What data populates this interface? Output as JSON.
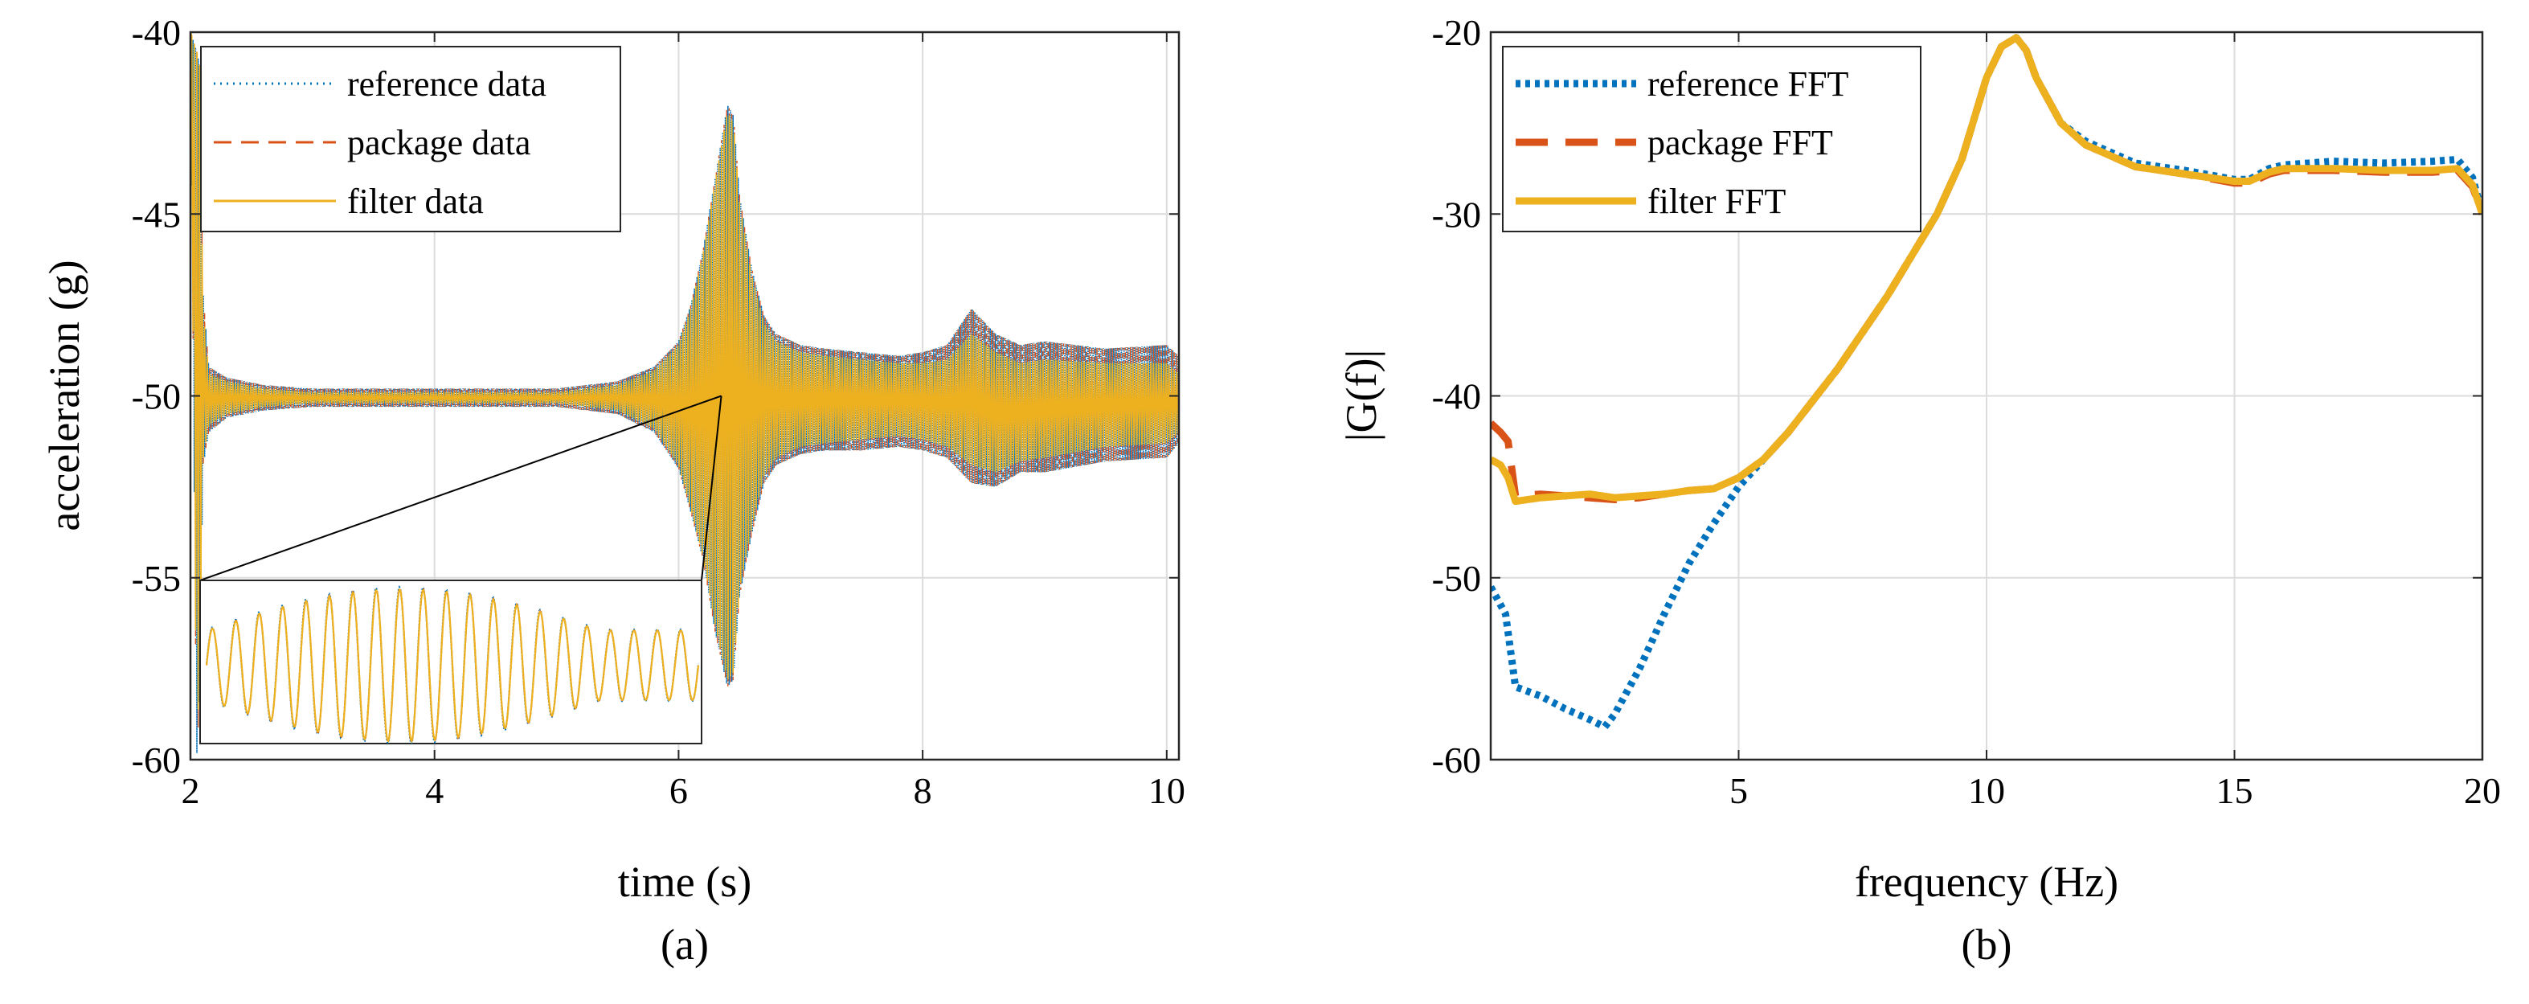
{
  "colors": {
    "reference": "#0072BD",
    "package": "#D95319",
    "filter": "#EDB120",
    "grid": "#DCDCDC",
    "axis": "#262626"
  },
  "chart_data": [
    {
      "panel_label": "(a)",
      "type": "line",
      "xlabel": "time (s)",
      "ylabel": "acceleration (g)",
      "xlim": [
        2,
        10.1
      ],
      "ylim": [
        -60,
        -40
      ],
      "xticks": [
        2,
        4,
        6,
        8,
        10
      ],
      "yticks": [
        -60,
        -55,
        -50,
        -45,
        -40
      ],
      "xtick_labels": [
        "2",
        "4",
        "6",
        "8",
        "10"
      ],
      "ytick_labels": [
        "-60",
        "-55",
        "-50",
        "-45",
        "-40"
      ],
      "grid": true,
      "legend_position": "top-left",
      "series": [
        {
          "name": "reference data",
          "style": "dotted",
          "color_key": "reference"
        },
        {
          "name": "package data",
          "style": "dashed",
          "color_key": "package"
        },
        {
          "name": "filter data",
          "style": "solid",
          "color_key": "filter"
        }
      ],
      "envelope": {
        "x": [
          2.0,
          2.05,
          2.08,
          2.1,
          2.15,
          2.3,
          2.6,
          3.0,
          4.0,
          5.0,
          5.5,
          5.8,
          6.0,
          6.1,
          6.2,
          6.3,
          6.4,
          6.45,
          6.5,
          6.6,
          6.7,
          6.8,
          7.0,
          7.2,
          7.5,
          7.8,
          8.0,
          8.2,
          8.4,
          8.6,
          8.8,
          9.0,
          9.5,
          10.0,
          10.1
        ],
        "reference_upper": [
          -40,
          -40.5,
          -41,
          -47,
          -49.2,
          -49.5,
          -49.7,
          -49.8,
          -49.8,
          -49.8,
          -49.6,
          -49.2,
          -48.5,
          -47.5,
          -46,
          -44,
          -42,
          -42.3,
          -44.5,
          -46.5,
          -47.8,
          -48.3,
          -48.6,
          -48.7,
          -48.8,
          -48.9,
          -48.8,
          -48.6,
          -47.6,
          -48.3,
          -48.6,
          -48.5,
          -48.7,
          -48.6,
          -48.9
        ],
        "reference_lower": [
          -40,
          -60,
          -58,
          -52,
          -51,
          -50.6,
          -50.4,
          -50.3,
          -50.3,
          -50.3,
          -50.5,
          -51,
          -52,
          -53.2,
          -54.5,
          -56.5,
          -58,
          -57.8,
          -55.5,
          -53.8,
          -52.4,
          -51.9,
          -51.6,
          -51.5,
          -51.5,
          -51.4,
          -51.5,
          -51.7,
          -52.4,
          -52.5,
          -52.1,
          -52.1,
          -51.8,
          -51.7,
          -51.3
        ],
        "filter_upper": [
          -40,
          -40.5,
          -41,
          -47.5,
          -49.4,
          -49.6,
          -49.8,
          -49.9,
          -49.9,
          -49.9,
          -49.7,
          -49.3,
          -48.6,
          -47.6,
          -46.1,
          -44.1,
          -42.2,
          -42.5,
          -44.7,
          -46.7,
          -48,
          -48.5,
          -48.8,
          -48.9,
          -49,
          -49.1,
          -49.1,
          -49,
          -48.3,
          -48.8,
          -49.1,
          -49,
          -49.1,
          -49.1,
          -49.4
        ],
        "filter_lower": [
          -40,
          -59.5,
          -57.5,
          -51.8,
          -50.8,
          -50.5,
          -50.3,
          -50.2,
          -50.2,
          -50.2,
          -50.4,
          -50.9,
          -51.9,
          -53.1,
          -54.4,
          -56.3,
          -57.8,
          -57.6,
          -55.3,
          -53.6,
          -52.2,
          -51.7,
          -51.4,
          -51.3,
          -51.2,
          -51.1,
          -51.2,
          -51.4,
          -51.9,
          -52.1,
          -51.8,
          -51.7,
          -51.4,
          -51.3,
          -51
        ]
      },
      "inset": {
        "description_free": true,
        "cycles": 21
      },
      "zoom_source": {
        "t_start": 2.1,
        "t_end": 6.35,
        "level": -50
      }
    },
    {
      "panel_label": "(b)",
      "type": "line",
      "xlabel": "frequency (Hz)",
      "ylabel": "|G(f)|",
      "xlim": [
        0,
        20
      ],
      "ylim": [
        -60,
        -20
      ],
      "xticks": [
        5,
        10,
        15,
        20
      ],
      "yticks": [
        -60,
        -50,
        -40,
        -30,
        -20
      ],
      "xtick_labels": [
        "5",
        "10",
        "15",
        "20"
      ],
      "ytick_labels": [
        "-60",
        "-50",
        "-40",
        "-30",
        "-20"
      ],
      "grid": true,
      "legend_position": "top-left",
      "series": [
        {
          "name": "reference FFT",
          "style": "dotted",
          "color_key": "reference",
          "x": [
            0,
            0.3,
            0.5,
            1.0,
            1.5,
            2.0,
            2.3,
            2.5,
            3.0,
            3.5,
            4.0,
            4.5,
            5.0,
            5.5,
            6.0,
            7.0,
            8.0,
            9.0,
            9.5,
            10.0,
            10.3,
            10.6,
            10.8,
            11.0,
            11.5,
            12.0,
            13.0,
            14.0,
            15.0,
            15.3,
            15.7,
            16.0,
            17.0,
            18.0,
            19.0,
            19.5,
            19.8,
            20.0
          ],
          "y": [
            -50.5,
            -52,
            -56,
            -56.5,
            -57.2,
            -57.8,
            -58.2,
            -57.5,
            -55,
            -52,
            -49.2,
            -47,
            -45,
            -43.5,
            -42,
            -38.5,
            -34.5,
            -30,
            -27,
            -22.5,
            -20.8,
            -20.3,
            -21,
            -22.5,
            -25,
            -26,
            -27.2,
            -27.6,
            -28.1,
            -28.1,
            -27.5,
            -27.3,
            -27.1,
            -27.2,
            -27.1,
            -27,
            -28,
            -30
          ]
        },
        {
          "name": "package FFT",
          "style": "dashed",
          "color_key": "package",
          "x": [
            0,
            0.2,
            0.35,
            0.5,
            1.0,
            1.5,
            2.0,
            2.5,
            3.0,
            3.5,
            4.0,
            4.5,
            5.0,
            5.5,
            6.0,
            7.0,
            8.0,
            9.0,
            9.5,
            10.0,
            10.3,
            10.6,
            10.8,
            11.0,
            11.5,
            12.0,
            13.0,
            14.0,
            15.0,
            15.3,
            15.7,
            16.0,
            17.0,
            18.0,
            19.0,
            19.5,
            19.8,
            20.0
          ],
          "y": [
            -41.5,
            -42,
            -42.5,
            -45.5,
            -45.4,
            -45.5,
            -45.6,
            -45.7,
            -45.6,
            -45.4,
            -45.2,
            -45.1,
            -44.5,
            -43.5,
            -42,
            -38.5,
            -34.5,
            -30,
            -27,
            -22.5,
            -20.8,
            -20.3,
            -21,
            -22.5,
            -25,
            -26.2,
            -27.4,
            -27.8,
            -28.3,
            -28.3,
            -27.8,
            -27.6,
            -27.6,
            -27.7,
            -27.7,
            -27.6,
            -28.5,
            -30
          ]
        },
        {
          "name": "filter FFT",
          "style": "solid",
          "color_key": "filter",
          "x": [
            0,
            0.2,
            0.35,
            0.5,
            1.0,
            1.5,
            2.0,
            2.5,
            3.0,
            3.5,
            4.0,
            4.5,
            5.0,
            5.5,
            6.0,
            7.0,
            8.0,
            9.0,
            9.5,
            10.0,
            10.3,
            10.6,
            10.8,
            11.0,
            11.5,
            12.0,
            13.0,
            14.0,
            15.0,
            15.3,
            15.7,
            16.0,
            17.0,
            18.0,
            19.0,
            19.5,
            19.8,
            20.0
          ],
          "y": [
            -43.5,
            -43.8,
            -44.5,
            -45.8,
            -45.6,
            -45.5,
            -45.4,
            -45.6,
            -45.5,
            -45.4,
            -45.2,
            -45.1,
            -44.5,
            -43.5,
            -42,
            -38.5,
            -34.5,
            -30,
            -27,
            -22.5,
            -20.8,
            -20.3,
            -21,
            -22.5,
            -25,
            -26.2,
            -27.4,
            -27.8,
            -28.2,
            -28.2,
            -27.7,
            -27.5,
            -27.5,
            -27.6,
            -27.6,
            -27.5,
            -28.4,
            -30
          ]
        }
      ]
    }
  ]
}
